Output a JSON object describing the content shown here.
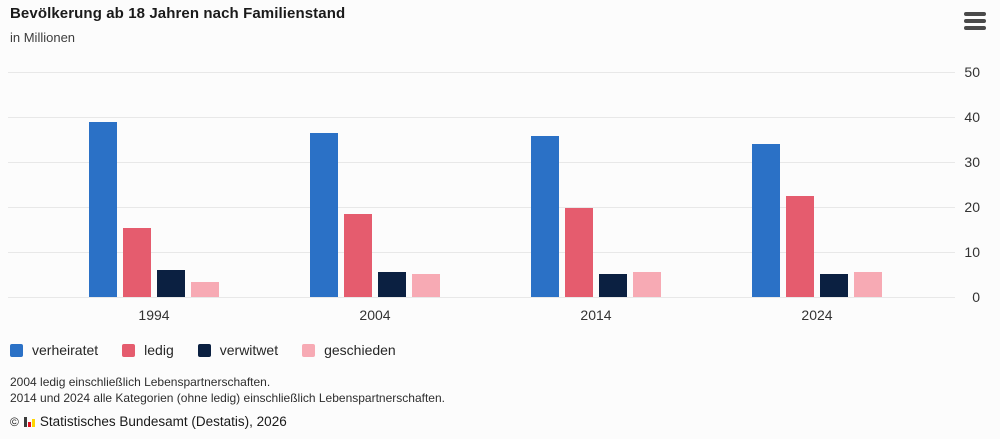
{
  "chart_data": {
    "type": "bar",
    "title": "Bevölkerung ab 18 Jahren nach Familienstand",
    "subtitle": "in Millionen",
    "categories": [
      "1994",
      "2004",
      "2014",
      "2024"
    ],
    "series": [
      {
        "name": "verheiratet",
        "color": "#2b71c6",
        "values": [
          38.8,
          36.5,
          35.8,
          34.1
        ]
      },
      {
        "name": "ledig",
        "color": "#e55c6e",
        "values": [
          15.4,
          18.4,
          19.7,
          22.4
        ]
      },
      {
        "name": "verwitwet",
        "color": "#0b2041",
        "values": [
          6.0,
          5.6,
          5.1,
          5.0
        ]
      },
      {
        "name": "geschieden",
        "color": "#f7aab4",
        "values": [
          3.4,
          5.1,
          5.5,
          5.6
        ]
      }
    ],
    "ylabel": "in Millionen",
    "xlabel": "",
    "ylim": [
      0,
      50
    ],
    "yticks": [
      0,
      10,
      20,
      30,
      40,
      50
    ],
    "grid": "horizontal",
    "grid_color": "#e8e8e8",
    "legend_position": "bottom"
  },
  "icons": {
    "menu": "hamburger-menu",
    "source_logo": "destatis-mini-bar-chart"
  },
  "footnotes": [
    "2004 ledig einschließlich Lebenspartnerschaften.",
    "2014 und 2024 alle Kategorien (ohne ledig) einschließlich Lebenspartnerschaften."
  ],
  "source": {
    "prefix": "©",
    "text": "Statistisches Bundesamt (Destatis), 2026"
  }
}
